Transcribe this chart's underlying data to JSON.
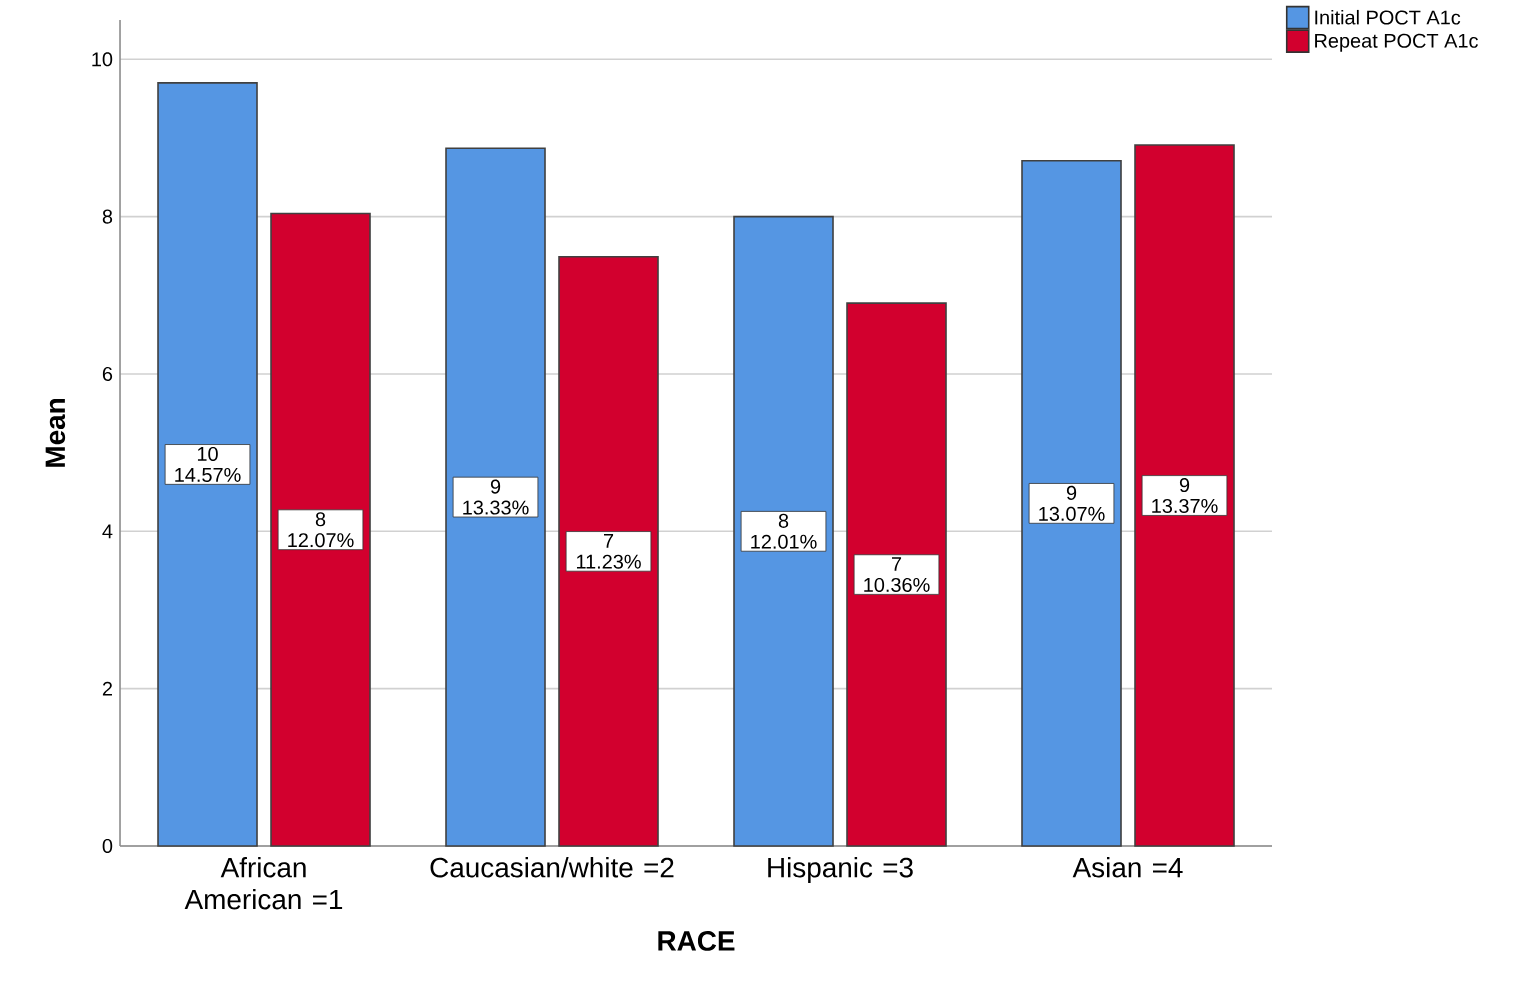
{
  "chart_data": {
    "type": "bar",
    "xlabel": "RACE",
    "ylabel": "Mean",
    "categories": [
      "African American =1",
      "Caucasian/white =2",
      "Hispanic =3",
      "Asian =4"
    ],
    "series": [
      {
        "name": "Initial POCT A1c",
        "color": "#5596e3",
        "values": [
          9.7,
          8.87,
          8.0,
          8.71
        ],
        "value_labels": [
          "10 14.57%",
          "9 13.33%",
          "8 12.01%",
          "9 13.07%"
        ]
      },
      {
        "name": "Repeat POCT A1c",
        "color": "#d2002e",
        "values": [
          8.04,
          7.49,
          6.9,
          8.91
        ],
        "value_labels": [
          "8 12.07%",
          "7 11.23%",
          "7 10.36%",
          "9 13.37%"
        ]
      }
    ],
    "ylim": [
      0,
      10.5
    ],
    "yticks": [
      0,
      2,
      4,
      6,
      8,
      10
    ],
    "grid": "y",
    "legend": "top right"
  }
}
